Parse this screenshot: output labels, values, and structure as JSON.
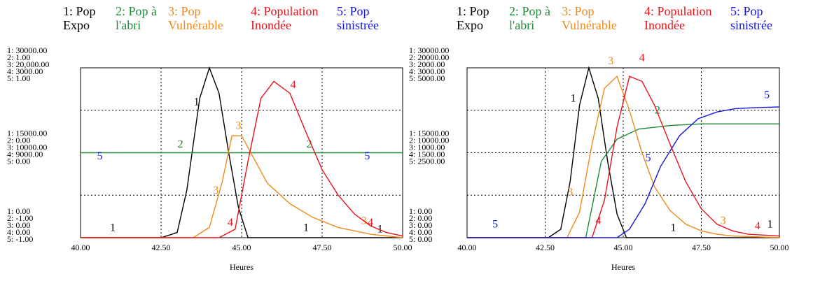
{
  "chart_data": [
    {
      "type": "line",
      "xlabel": "Heures",
      "x_ticks": [
        "40.00",
        "42.50",
        "45.00",
        "47.50",
        "50.00"
      ],
      "xlim": [
        40,
        50
      ],
      "legend": [
        {
          "num": "1:",
          "l1": "Pop",
          "l2": "Expo",
          "color": "#000000"
        },
        {
          "num": "2:",
          "l1": "Pop à",
          "l2": "l'abri",
          "color": "#1e8a3c"
        },
        {
          "num": "3:",
          "l1": "Pop",
          "l2": "Vulnérable",
          "color": "#f08a1c"
        },
        {
          "num": "4:",
          "l1": "Population",
          "l2": "Inondée",
          "color": "#e8141c"
        },
        {
          "num": "5:",
          "l1": "Pop",
          "l2": "sinistrée",
          "color": "#1418d8"
        }
      ],
      "y_blocks": [
        [
          "1: 30000.00",
          "2: 1.00",
          "3: 20,000.00",
          "4: 3000.00",
          "5: 1.00"
        ],
        [
          "1: 15000.00",
          "2: 0.00",
          "3: 10000.00",
          "4: 9000.00",
          "5: 0.00"
        ],
        [
          "1: 0.00",
          "2: -1.00",
          "3: 0.00",
          "4: 0.00",
          "5: -1.00"
        ]
      ],
      "series": [
        {
          "name": "Pop Expo",
          "marker": "1",
          "color": "#000000",
          "x": [
            40,
            41.5,
            42.5,
            43.0,
            43.3,
            43.7,
            44.0,
            44.3,
            44.6,
            44.9,
            45.2,
            50
          ],
          "y": [
            0,
            0,
            0,
            0.03,
            0.28,
            0.82,
            1.0,
            0.85,
            0.5,
            0.18,
            0,
            0
          ],
          "labels": [
            {
              "x": 43.6,
              "y": 0.78
            },
            {
              "x": 41.0,
              "y": 0.04
            },
            {
              "x": 47.0,
              "y": 0.04
            },
            {
              "x": 49.3,
              "y": 0.03
            }
          ]
        },
        {
          "name": "Pop à l'abri",
          "marker": "2",
          "color": "#1e8a3c",
          "x": [
            40,
            50
          ],
          "y": [
            0.5,
            0.5
          ],
          "labels": [
            {
              "x": 43.1,
              "y": 0.53
            },
            {
              "x": 47.1,
              "y": 0.53
            }
          ]
        },
        {
          "name": "Pop Vulnérable",
          "marker": "3",
          "color": "#f08a1c",
          "x": [
            40,
            43.5,
            44.0,
            44.4,
            44.7,
            45.0,
            45.4,
            45.8,
            46.5,
            47.2,
            48.0,
            49.0,
            50
          ],
          "y": [
            0,
            0,
            0.06,
            0.33,
            0.6,
            0.6,
            0.46,
            0.32,
            0.2,
            0.12,
            0.06,
            0.02,
            0
          ],
          "labels": [
            {
              "x": 44.9,
              "y": 0.64
            },
            {
              "x": 44.2,
              "y": 0.26
            },
            {
              "x": 48.8,
              "y": 0.08
            }
          ]
        },
        {
          "name": "Population Inondée",
          "marker": "4",
          "color": "#e8141c",
          "x": [
            40,
            44.3,
            44.8,
            45.2,
            45.6,
            46.0,
            46.5,
            47.0,
            47.5,
            48.0,
            48.5,
            49.0,
            49.5,
            50
          ],
          "y": [
            0,
            0,
            0.05,
            0.45,
            0.82,
            0.92,
            0.85,
            0.62,
            0.4,
            0.25,
            0.14,
            0.07,
            0.03,
            0.01
          ],
          "labels": [
            {
              "x": 44.65,
              "y": 0.07
            },
            {
              "x": 46.6,
              "y": 0.88
            },
            {
              "x": 49.0,
              "y": 0.07
            }
          ]
        },
        {
          "name": "Pop sinistrée",
          "marker": "5",
          "color": "#1418d8",
          "x": [],
          "y": [],
          "labels": [
            {
              "x": 40.6,
              "y": 0.46
            },
            {
              "x": 48.9,
              "y": 0.46
            }
          ]
        }
      ]
    },
    {
      "type": "line",
      "xlabel": "Heures",
      "x_ticks": [
        "40.00",
        "42.50",
        "45.00",
        "47.50",
        "50.00"
      ],
      "xlim": [
        40,
        50
      ],
      "legend": [
        {
          "num": "1:",
          "l1": "Pop",
          "l2": "Expo",
          "color": "#000000"
        },
        {
          "num": "2:",
          "l1": "Pop à",
          "l2": "l'abri",
          "color": "#1e8a3c"
        },
        {
          "num": "3:",
          "l1": "Pop",
          "l2": "Vulnérable",
          "color": "#f08a1c"
        },
        {
          "num": "4:",
          "l1": "Population",
          "l2": "Inondée",
          "color": "#e8141c"
        },
        {
          "num": "5:",
          "l1": "Pop",
          "l2": "sinistrée",
          "color": "#1418d8"
        }
      ],
      "y_blocks": [
        [
          "1: 30000.00",
          "2: 20000.00",
          "3: 2000.00",
          "4: 3000.00",
          "5: 5000.00"
        ],
        [
          "1: 15000.00",
          "2: 10000.00",
          "3: 1000.00",
          "4: 1500.00",
          "5: 2500.00"
        ],
        [
          "1: 0.00",
          "2: 0.00",
          "3: 0.00",
          "4: 0.00",
          "5: 0.00"
        ]
      ],
      "series": [
        {
          "name": "Pop Expo",
          "marker": "1",
          "color": "#000000",
          "x": [
            40,
            42.6,
            43.0,
            43.3,
            43.6,
            43.9,
            44.2,
            44.5,
            44.8,
            45.1,
            50
          ],
          "y": [
            0,
            0,
            0.05,
            0.33,
            0.78,
            1.0,
            0.82,
            0.45,
            0.14,
            0,
            0
          ],
          "labels": [
            {
              "x": 43.4,
              "y": 0.8
            },
            {
              "x": 46.6,
              "y": 0.04
            },
            {
              "x": 49.7,
              "y": 0.06
            }
          ]
        },
        {
          "name": "Pop à l'abri",
          "marker": "2",
          "color": "#1e8a3c",
          "x": [
            40,
            43.8,
            44.0,
            44.3,
            44.8,
            45.5,
            46.5,
            47.5,
            48.5,
            50
          ],
          "y": [
            0,
            0,
            0.18,
            0.45,
            0.58,
            0.64,
            0.66,
            0.67,
            0.67,
            0.67
          ],
          "labels": [
            {
              "x": 46.1,
              "y": 0.73
            }
          ]
        },
        {
          "name": "Pop Vulnérable",
          "marker": "3",
          "color": "#f08a1c",
          "x": [
            40,
            43.2,
            43.6,
            44.0,
            44.4,
            44.8,
            45.2,
            45.6,
            46.0,
            46.5,
            47.0,
            47.5,
            48.0,
            48.5,
            50
          ],
          "y": [
            0,
            0,
            0.15,
            0.55,
            0.88,
            0.95,
            0.75,
            0.5,
            0.3,
            0.16,
            0.08,
            0.04,
            0.02,
            0.01,
            0
          ],
          "labels": [
            {
              "x": 44.6,
              "y": 1.02
            },
            {
              "x": 43.3,
              "y": 0.25
            },
            {
              "x": 48.2,
              "y": 0.08
            }
          ]
        },
        {
          "name": "Population Inondée",
          "marker": "4",
          "color": "#e8141c",
          "x": [
            40,
            44.0,
            44.4,
            44.8,
            45.2,
            45.6,
            46.0,
            46.5,
            47.0,
            47.5,
            48.0,
            48.5,
            49.0,
            50
          ],
          "y": [
            0,
            0,
            0.22,
            0.65,
            0.95,
            0.92,
            0.78,
            0.55,
            0.33,
            0.17,
            0.08,
            0.04,
            0.02,
            0.01
          ],
          "labels": [
            {
              "x": 44.2,
              "y": 0.08
            },
            {
              "x": 45.6,
              "y": 1.04
            },
            {
              "x": 49.3,
              "y": 0.05
            }
          ]
        },
        {
          "name": "Pop sinistrée",
          "marker": "5",
          "color": "#1418d8",
          "x": [
            40,
            44.8,
            45.2,
            45.7,
            46.2,
            46.8,
            47.4,
            48.0,
            48.6,
            49.2,
            50
          ],
          "y": [
            0,
            0,
            0.05,
            0.2,
            0.42,
            0.6,
            0.7,
            0.74,
            0.76,
            0.765,
            0.77
          ],
          "labels": [
            {
              "x": 40.9,
              "y": 0.06
            },
            {
              "x": 45.8,
              "y": 0.45
            },
            {
              "x": 49.6,
              "y": 0.82
            }
          ]
        }
      ]
    }
  ]
}
